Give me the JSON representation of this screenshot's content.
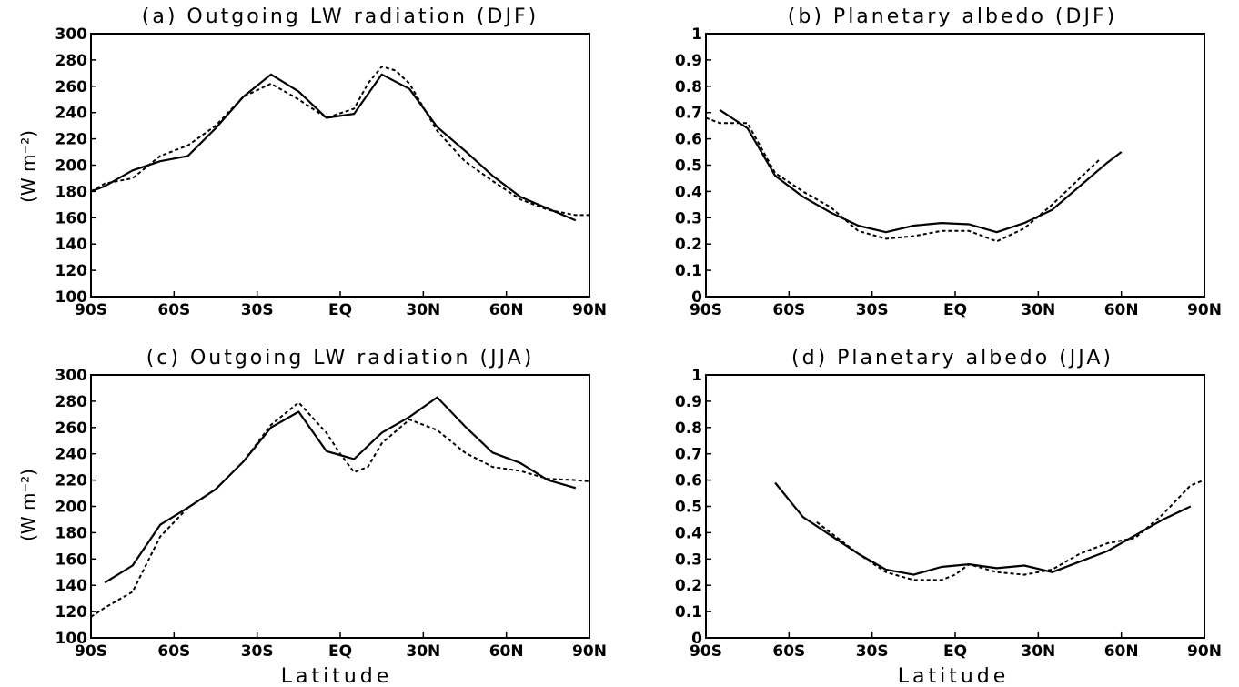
{
  "figure": {
    "xlabel": "Latitude",
    "colors": {
      "solid": "#000000",
      "dashed": "#000000",
      "background": "#ffffff"
    }
  },
  "chart_data": [
    {
      "type": "line",
      "title": "(a) Outgoing LW radiation (DJF)",
      "ylabel": "(W m⁻²)",
      "xlabel": "",
      "xlim": [
        -90,
        90
      ],
      "xticks": [
        -90,
        -60,
        -30,
        0,
        30,
        60,
        90
      ],
      "xticklabels": [
        "90S",
        "60S",
        "30S",
        "EQ",
        "30N",
        "60N",
        "90N"
      ],
      "ylim": [
        100,
        300
      ],
      "yticks": [
        100,
        120,
        140,
        160,
        180,
        200,
        220,
        240,
        260,
        280,
        300
      ],
      "yticklabels": [
        "100",
        "120",
        "140",
        "160",
        "180",
        "200",
        "220",
        "240",
        "260",
        "280",
        "300"
      ],
      "grid": false,
      "series": [
        {
          "style": "solid",
          "x": [
            -90,
            -85,
            -75,
            -65,
            -55,
            -45,
            -35,
            -25,
            -15,
            -5,
            5,
            15,
            25,
            35,
            45,
            55,
            65,
            75,
            85
          ],
          "y": [
            180,
            184,
            196,
            203,
            207,
            228,
            252,
            269,
            256,
            236,
            239,
            269,
            258,
            229,
            211,
            192,
            176,
            167,
            158
          ]
        },
        {
          "style": "dashed",
          "x": [
            -90,
            -85,
            -75,
            -65,
            -55,
            -45,
            -35,
            -25,
            -15,
            -5,
            5,
            10,
            15,
            20,
            25,
            35,
            45,
            55,
            65,
            75,
            85,
            90
          ],
          "y": [
            180,
            186,
            190,
            207,
            215,
            230,
            252,
            262,
            250,
            236,
            243,
            262,
            275,
            272,
            262,
            226,
            203,
            188,
            174,
            166,
            162,
            162
          ]
        }
      ]
    },
    {
      "type": "line",
      "title": "(b) Planetary albedo (DJF)",
      "ylabel": "",
      "xlabel": "",
      "xlim": [
        -90,
        90
      ],
      "xticks": [
        -90,
        -60,
        -30,
        0,
        30,
        60,
        90
      ],
      "xticklabels": [
        "90S",
        "60S",
        "30S",
        "EQ",
        "30N",
        "60N",
        "90N"
      ],
      "ylim": [
        0,
        1
      ],
      "yticks": [
        0,
        0.1,
        0.2,
        0.3,
        0.4,
        0.5,
        0.6,
        0.7,
        0.8,
        0.9,
        1
      ],
      "yticklabels": [
        "0",
        "0.1",
        "0.2",
        "0.3",
        "0.4",
        "0.5",
        "0.6",
        "0.7",
        "0.8",
        "0.9",
        "1"
      ],
      "grid": false,
      "series": [
        {
          "style": "solid",
          "x": [
            -85,
            -75,
            -65,
            -55,
            -45,
            -35,
            -25,
            -15,
            -5,
            5,
            15,
            25,
            35,
            45,
            55,
            60
          ],
          "y": [
            0.71,
            0.64,
            0.46,
            0.38,
            0.32,
            0.27,
            0.245,
            0.27,
            0.28,
            0.275,
            0.245,
            0.28,
            0.33,
            0.42,
            0.51,
            0.55
          ]
        },
        {
          "style": "dashed",
          "x": [
            -90,
            -85,
            -75,
            -65,
            -55,
            -45,
            -35,
            -25,
            -15,
            -5,
            5,
            15,
            25,
            35,
            45,
            52
          ],
          "y": [
            0.68,
            0.66,
            0.66,
            0.47,
            0.4,
            0.34,
            0.25,
            0.22,
            0.23,
            0.25,
            0.25,
            0.21,
            0.26,
            0.35,
            0.45,
            0.52
          ]
        }
      ]
    },
    {
      "type": "line",
      "title": "(c) Outgoing LW radiation (JJA)",
      "ylabel": "(W m⁻²)",
      "xlabel": "Latitude",
      "xlim": [
        -90,
        90
      ],
      "xticks": [
        -90,
        -60,
        -30,
        0,
        30,
        60,
        90
      ],
      "xticklabels": [
        "90S",
        "60S",
        "30S",
        "EQ",
        "30N",
        "60N",
        "90N"
      ],
      "ylim": [
        100,
        300
      ],
      "yticks": [
        100,
        120,
        140,
        160,
        180,
        200,
        220,
        240,
        260,
        280,
        300
      ],
      "yticklabels": [
        "100",
        "120",
        "140",
        "160",
        "180",
        "200",
        "220",
        "240",
        "260",
        "280",
        "300"
      ],
      "grid": false,
      "series": [
        {
          "style": "solid",
          "x": [
            -85,
            -75,
            -65,
            -55,
            -45,
            -35,
            -25,
            -15,
            -5,
            5,
            15,
            25,
            35,
            45,
            55,
            65,
            75,
            85
          ],
          "y": [
            142,
            155,
            186,
            199,
            213,
            234,
            260,
            272,
            242,
            236,
            256,
            268,
            283,
            261,
            241,
            233,
            220,
            214
          ]
        },
        {
          "style": "dashed",
          "x": [
            -90,
            -85,
            -75,
            -65,
            -55,
            -45,
            -35,
            -25,
            -15,
            -5,
            0,
            5,
            10,
            15,
            25,
            35,
            45,
            55,
            65,
            75,
            85,
            90
          ],
          "y": [
            116,
            123,
            135,
            177,
            199,
            213,
            234,
            262,
            279,
            256,
            240,
            226,
            230,
            248,
            266,
            258,
            241,
            230,
            227,
            221,
            220,
            219
          ]
        }
      ]
    },
    {
      "type": "line",
      "title": "(d) Planetary albedo (JJA)",
      "ylabel": "",
      "xlabel": "Latitude",
      "xlim": [
        -90,
        90
      ],
      "xticks": [
        -90,
        -60,
        -30,
        0,
        30,
        60,
        90
      ],
      "xticklabels": [
        "90S",
        "60S",
        "30S",
        "EQ",
        "30N",
        "60N",
        "90N"
      ],
      "ylim": [
        0,
        1
      ],
      "yticks": [
        0,
        0.1,
        0.2,
        0.3,
        0.4,
        0.5,
        0.6,
        0.7,
        0.8,
        0.9,
        1
      ],
      "yticklabels": [
        "0",
        "0.1",
        "0.2",
        "0.3",
        "0.4",
        "0.5",
        "0.6",
        "0.7",
        "0.8",
        "0.9",
        "1"
      ],
      "grid": false,
      "series": [
        {
          "style": "solid",
          "x": [
            -65,
            -55,
            -45,
            -35,
            -25,
            -15,
            -5,
            5,
            15,
            25,
            35,
            45,
            55,
            65,
            75,
            85
          ],
          "y": [
            0.59,
            0.46,
            0.39,
            0.32,
            0.26,
            0.24,
            0.27,
            0.28,
            0.265,
            0.275,
            0.25,
            0.29,
            0.33,
            0.39,
            0.45,
            0.5
          ]
        },
        {
          "style": "dashed",
          "x": [
            -50,
            -45,
            -35,
            -25,
            -15,
            -5,
            0,
            5,
            15,
            25,
            35,
            45,
            55,
            65,
            75,
            85,
            90
          ],
          "y": [
            0.44,
            0.4,
            0.32,
            0.25,
            0.22,
            0.22,
            0.24,
            0.28,
            0.25,
            0.24,
            0.26,
            0.32,
            0.36,
            0.38,
            0.47,
            0.58,
            0.6
          ]
        }
      ]
    }
  ]
}
